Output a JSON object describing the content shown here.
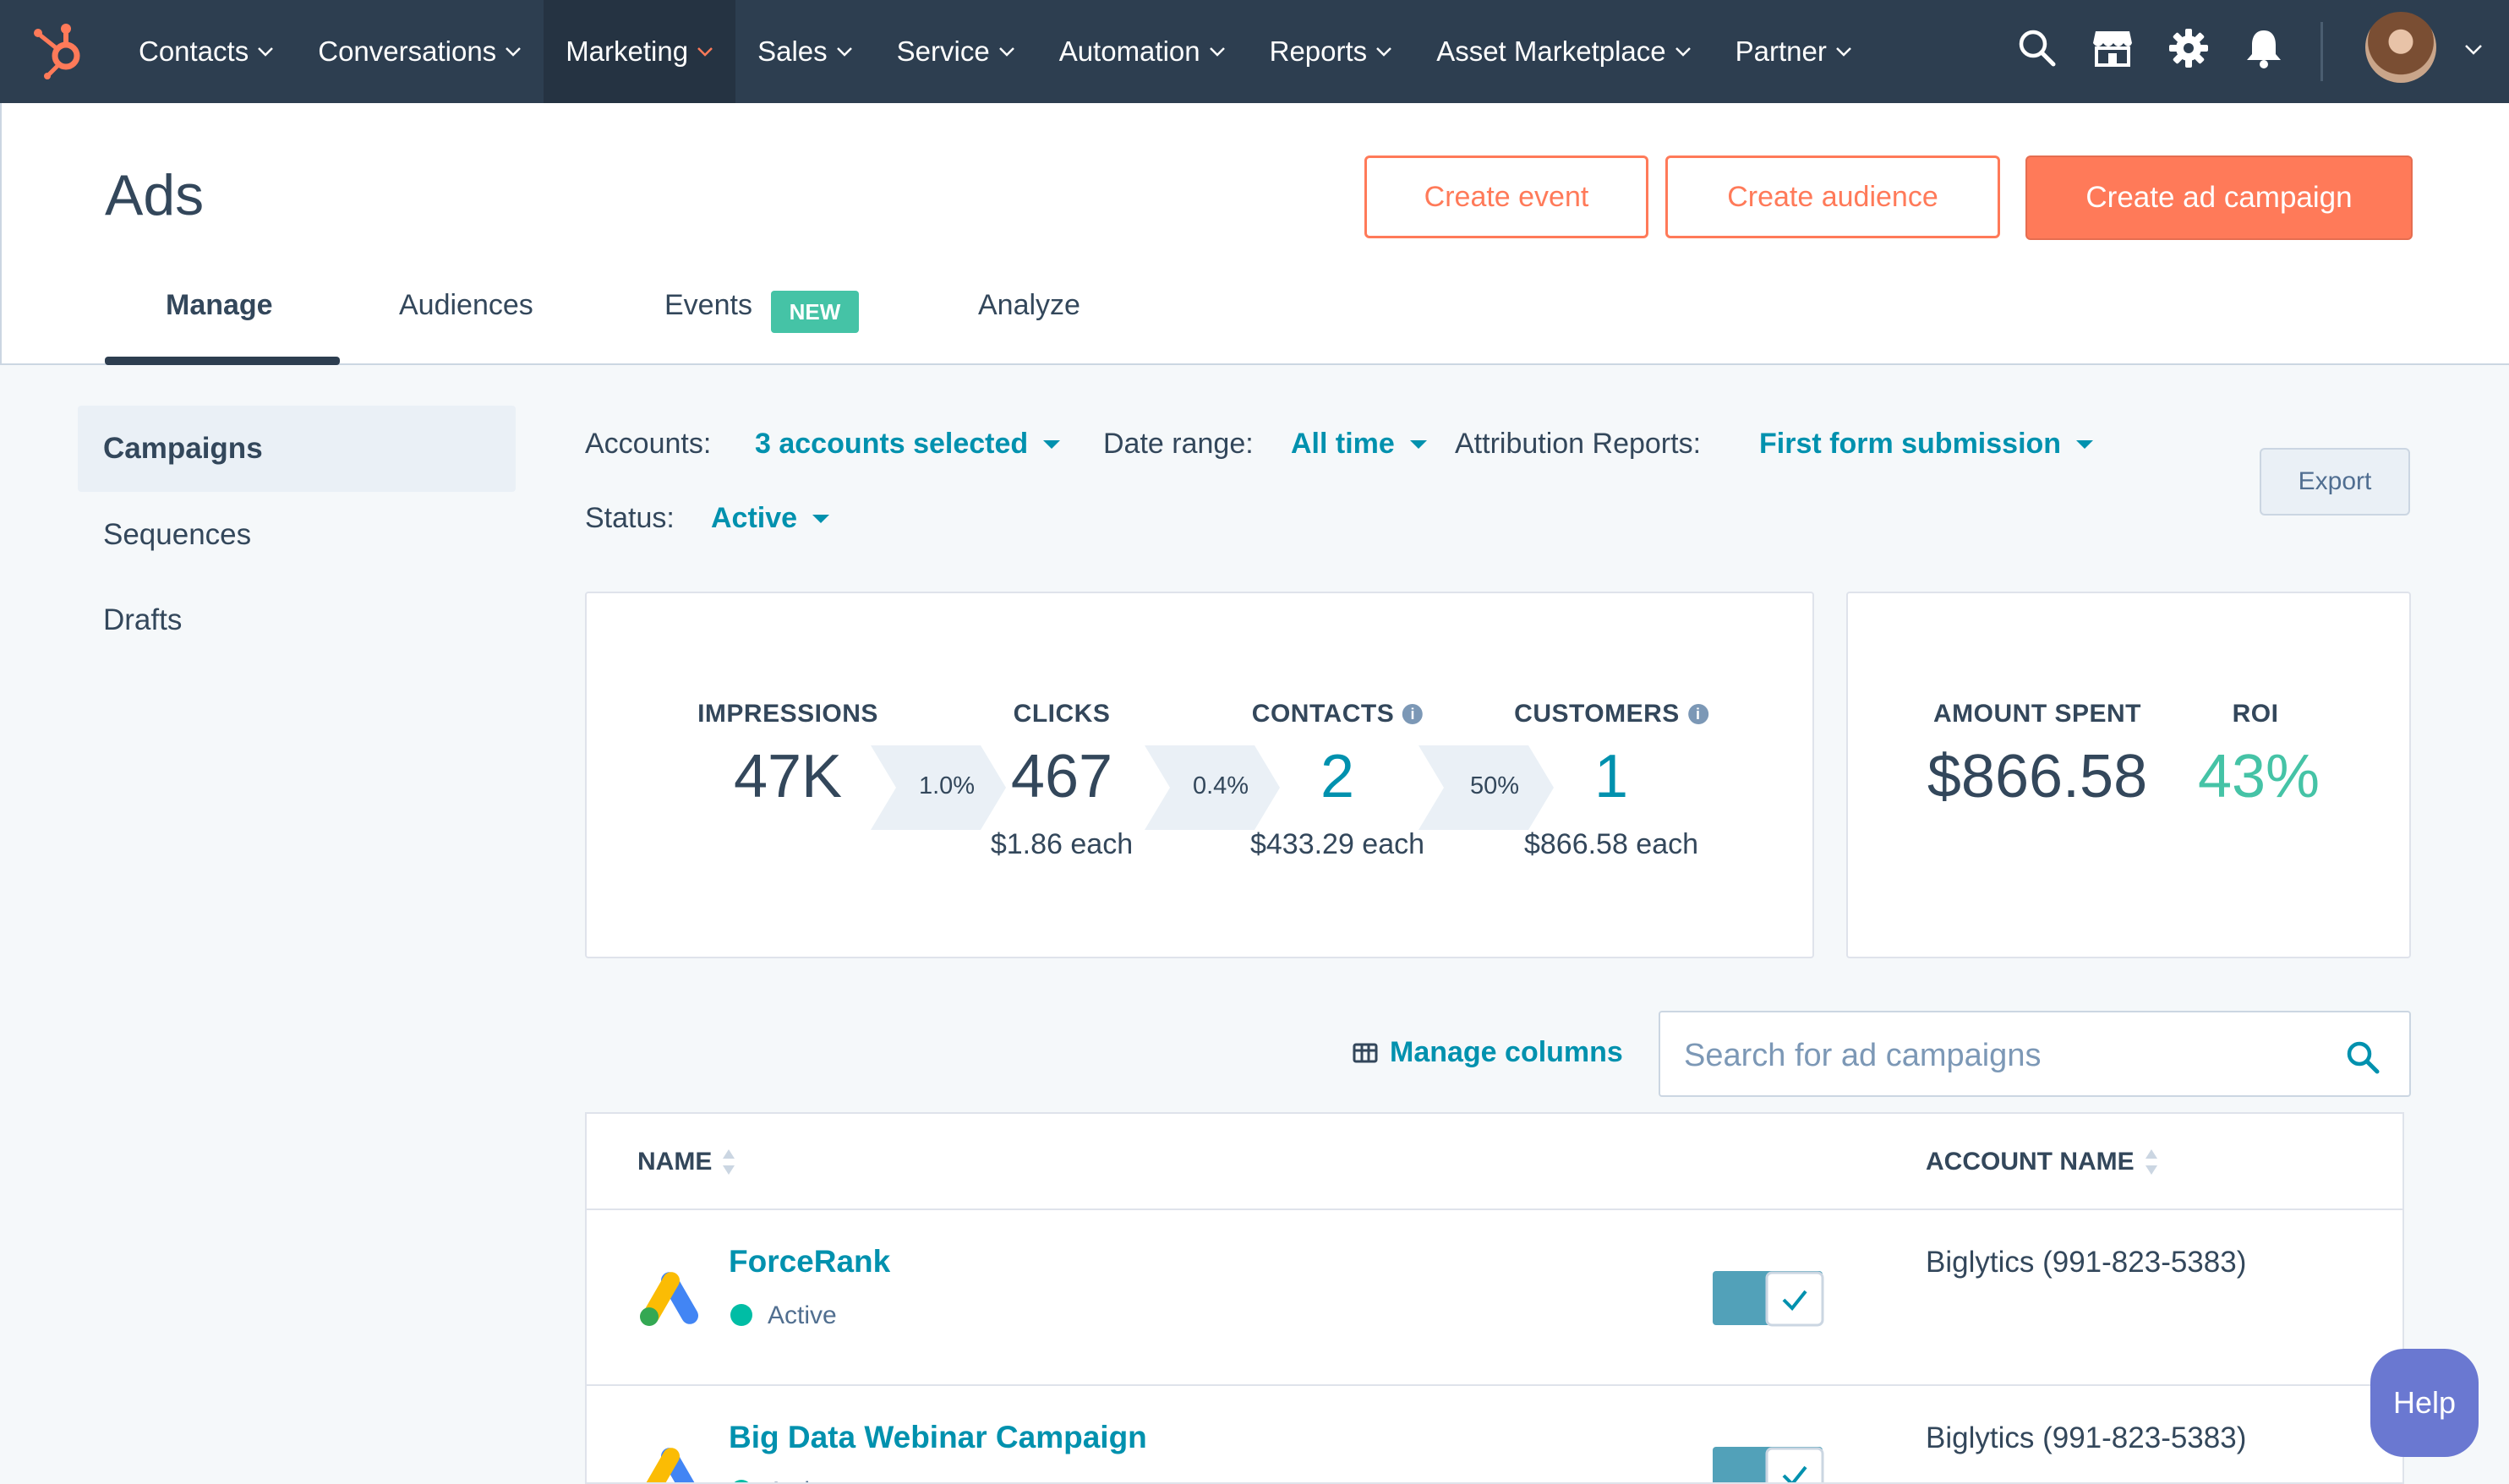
{
  "nav": {
    "items": [
      {
        "label": "Contacts"
      },
      {
        "label": "Conversations"
      },
      {
        "label": "Marketing"
      },
      {
        "label": "Sales"
      },
      {
        "label": "Service"
      },
      {
        "label": "Automation"
      },
      {
        "label": "Reports"
      },
      {
        "label": "Asset Marketplace"
      },
      {
        "label": "Partner"
      }
    ],
    "active": "Marketing",
    "icons": [
      "search-icon",
      "marketplace-icon",
      "gear-icon",
      "bell-icon"
    ]
  },
  "header": {
    "title": "Ads",
    "buttons": {
      "create_event": "Create event",
      "create_audience": "Create audience",
      "create_campaign": "Create ad campaign"
    },
    "tabs": [
      {
        "label": "Manage"
      },
      {
        "label": "Audiences"
      },
      {
        "label": "Events",
        "badge": "NEW"
      },
      {
        "label": "Analyze"
      }
    ],
    "active_tab": "Manage"
  },
  "sidebar": {
    "items": [
      {
        "label": "Campaigns"
      },
      {
        "label": "Sequences"
      },
      {
        "label": "Drafts"
      }
    ],
    "active": "Campaigns"
  },
  "filters": {
    "accounts_label": "Accounts:",
    "accounts_value": "3 accounts selected",
    "date_label": "Date range:",
    "date_value": "All time",
    "attribution_label": "Attribution Reports:",
    "attribution_value": "First form submission",
    "status_label": "Status:",
    "status_value": "Active",
    "export": "Export"
  },
  "funnel": {
    "impressions": {
      "label": "IMPRESSIONS",
      "value": "47K"
    },
    "clicks": {
      "label": "CLICKS",
      "value": "467",
      "each": "$1.86 each"
    },
    "contacts": {
      "label": "CONTACTS",
      "value": "2",
      "each": "$433.29 each"
    },
    "customers": {
      "label": "CUSTOMERS",
      "value": "1",
      "each": "$866.58 each"
    },
    "rates": [
      "1.0%",
      "0.4%",
      "50%"
    ]
  },
  "spend": {
    "amount_label": "AMOUNT SPENT",
    "amount_value": "$866.58",
    "roi_label": "ROI",
    "roi_value": "43%"
  },
  "table_tools": {
    "manage_columns": "Manage columns",
    "search_placeholder": "Search for ad campaigns"
  },
  "table": {
    "columns": {
      "name": "NAME",
      "account": "ACCOUNT NAME"
    },
    "rows": [
      {
        "name": "ForceRank",
        "status": "Active",
        "account": "Biglytics (991-823-5383)",
        "enabled": true
      },
      {
        "name": "Big Data Webinar Campaign",
        "status": "Active",
        "account": "Biglytics (991-823-5383)",
        "enabled": true
      }
    ]
  },
  "help": "Help",
  "colors": {
    "nav_bg": "#2d3e50",
    "accent": "#ff7a59",
    "link": "#0091ae",
    "roi_green": "#45c3a6",
    "status_green": "#00bda5",
    "help_purple": "#6a78d1"
  }
}
